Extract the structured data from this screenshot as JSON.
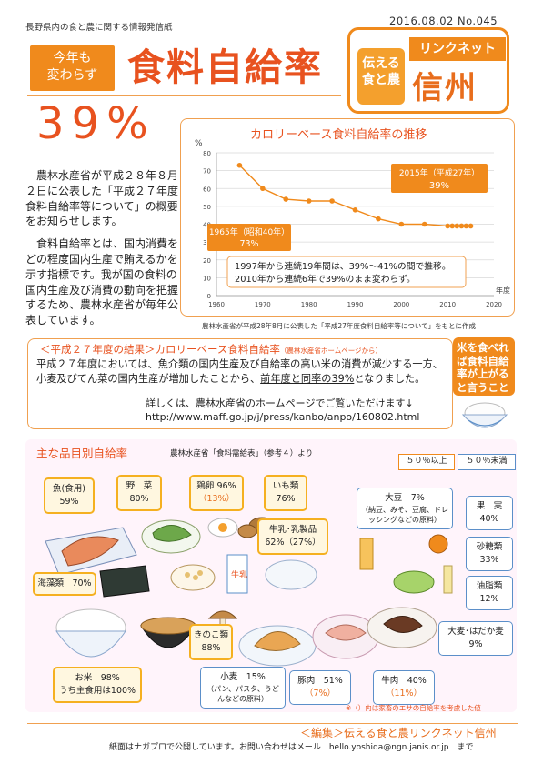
{
  "header": {
    "subtitle": "長野県内の食と農に関する情報発信紙",
    "issue": "2016.08.02  No.045",
    "tag_line1": "今年も",
    "tag_line2": "変わらず",
    "title": "食料自給率",
    "big_number": "39%"
  },
  "logo": {
    "left_line1": "伝える",
    "left_line2": "食と農",
    "top_text": "リンクネット",
    "main_text": "信州"
  },
  "intro": {
    "p1": "農林水産省が平成２８年８月２日に公表した「平成２７年度食料自給率等について」の概要をお知らせします。",
    "p2": "食料自給率とは、国内消費をどの程度国内生産で賄えるかを示す指標です。我が国の食料の国内生産及び消費の動向を把握するため、農林水産省が毎年公表しています。"
  },
  "chart_data": {
    "type": "line",
    "title": "カロリーベース食料自給率の推移",
    "ylabel": "%",
    "xlabel": "年度",
    "ylim": [
      0,
      80
    ],
    "xlim": [
      1960,
      2020
    ],
    "yticks": [
      0,
      10,
      20,
      30,
      40,
      50,
      60,
      70,
      80
    ],
    "xticks": [
      1960,
      1970,
      1980,
      1990,
      2000,
      2010,
      2020
    ],
    "x": [
      1965,
      1970,
      1975,
      1980,
      1985,
      1990,
      1995,
      2000,
      2005,
      2010,
      2011,
      2012,
      2013,
      2014,
      2015
    ],
    "values": [
      73,
      60,
      54,
      53,
      53,
      48,
      43,
      40,
      40,
      39,
      39,
      39,
      39,
      39,
      39
    ],
    "color": "#f08a1c",
    "annotations": {
      "start_label_1": "1965年（昭和40年）",
      "start_label_2": "73%",
      "end_label_1": "2015年（平成27年）",
      "end_label_2": "39%",
      "note_1": "1997年から連続19年間は、39%～41%の間で推移。",
      "note_2": "2010年から連続6年で39%のまま変わらず。"
    },
    "source": "農林水産省が平成28年8月に公表した「平成27年度食料自給率等について」をもとに作成"
  },
  "results": {
    "title": "＜平成２７年度の結果＞カロリーベース食料自給率",
    "title_small": "（農林水産省ホームページから）",
    "body_a": "平成２７年度においては、魚介類の国内生産及び自給率の高い米の消費が減少する一方、小麦及びてん菜の国内生産が増加したことから、",
    "body_ul": "前年度と同率の39%",
    "body_b": "となりました。",
    "more_1": "詳しくは、農林水産省のホームページでご覧いただけます↓",
    "more_2": "http://www.maff.go.jp/j/press/kanbo/anpo/160802.html"
  },
  "callout": {
    "text": "米を食べれば食料自給率が上がると言うこと"
  },
  "items": {
    "heading": "主な品目別自給率",
    "source": "農林水産省「食料需給表」（参考４）より",
    "legend_high": "５０％以上",
    "legend_low": "５０％未満",
    "footnote": "※（）内は家畜のエサの自給率を考慮した値",
    "list": [
      {
        "key": "fish",
        "name": "魚(食用)",
        "pct": "59%"
      },
      {
        "key": "veg",
        "name": "野　菜",
        "pct": "80%"
      },
      {
        "key": "egg",
        "name": "鶏卵 96%",
        "pct": "（13%）"
      },
      {
        "key": "potato",
        "name": "いも類",
        "pct": "76%"
      },
      {
        "key": "milk",
        "name": "牛乳･乳製品",
        "pct": "62%（27%）"
      },
      {
        "key": "seaweed",
        "name": "海藻類　70%",
        "pct": ""
      },
      {
        "key": "mushroom",
        "name": "きのこ類",
        "pct": "88%"
      },
      {
        "key": "rice",
        "name": "お米　98%",
        "pct": "うち主食用は100%"
      },
      {
        "key": "soy",
        "name": "大豆　7%",
        "pct": "（納豆、みそ、豆腐、ドレッシングなどの原料）"
      },
      {
        "key": "fruit",
        "name": "果　実",
        "pct": "40%"
      },
      {
        "key": "sugar",
        "name": "砂糖類",
        "pct": "33%"
      },
      {
        "key": "oil",
        "name": "油脂類",
        "pct": "12%"
      },
      {
        "key": "barley",
        "name": "大麦･はだか麦",
        "pct": "9%"
      },
      {
        "key": "wheat",
        "name": "小麦　15%",
        "pct": "（パン、パスタ、うどんなどの原料）"
      },
      {
        "key": "pork",
        "name": "豚肉　51%",
        "pct": "（7%）"
      },
      {
        "key": "beef",
        "name": "牛肉　40%",
        "pct": "（11%）"
      }
    ]
  },
  "footer": {
    "edit": "＜編集＞伝える食と農リンクネット信州",
    "note": "紙面はナガプロで公開しています。お問い合わせはメール　hello.yoshida@ngn.janis.or.jp　まで"
  }
}
